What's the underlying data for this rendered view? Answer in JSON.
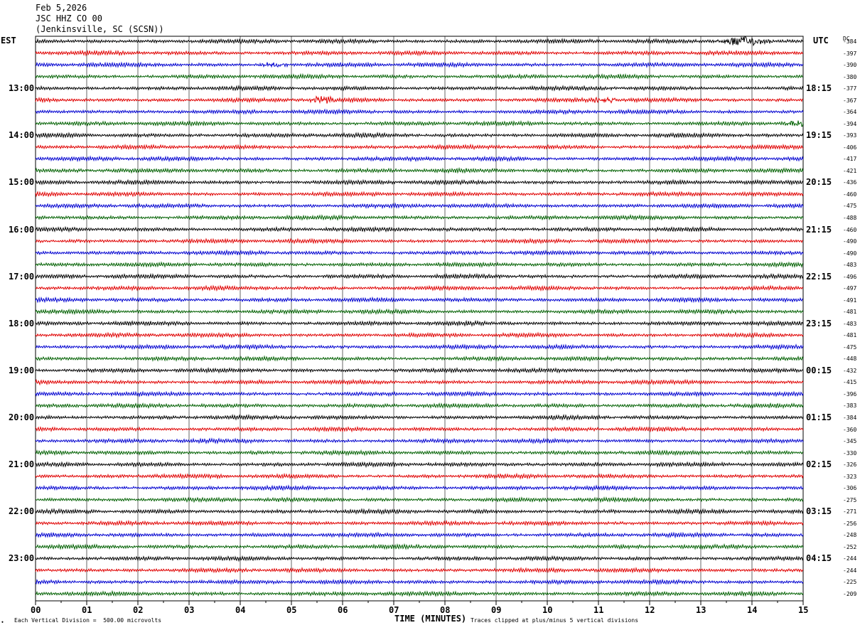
{
  "header": {
    "date": "Feb 5,2026",
    "station": "JSC HHZ CO 00",
    "location": "(Jenkinsville, SC (SCSN))"
  },
  "left_tz": "EST",
  "right_tz": "UTC",
  "dc_header": "DC",
  "footer": {
    "scale": "Each Vertical Division =  500.00 microvolts",
    "clip_note": "Traces clipped at plus/minus 5 vertical divisions",
    "xlabel": "TIME (MINUTES)"
  },
  "chart_data": {
    "type": "line",
    "title": "",
    "xlabel": "TIME (MINUTES)",
    "xlim": [
      0,
      15
    ],
    "x_ticks": [
      "00",
      "01",
      "02",
      "03",
      "04",
      "05",
      "06",
      "07",
      "08",
      "09",
      "10",
      "11",
      "12",
      "13",
      "14",
      "15"
    ],
    "trace_interval_minutes": 15,
    "trace_colors": [
      "#000000",
      "#e00000",
      "#0000d0",
      "#006000"
    ],
    "hour_labels_local": [
      "13:00",
      "14:00",
      "15:00",
      "16:00",
      "17:00",
      "18:00",
      "19:00",
      "20:00",
      "21:00",
      "22:00",
      "23:00"
    ],
    "hour_labels_utc": [
      "18:15",
      "19:15",
      "20:15",
      "21:15",
      "22:15",
      "23:15",
      "00:15",
      "01:15",
      "02:15",
      "03:15",
      "04:15"
    ],
    "dc_offsets": [
      "-384",
      "-397",
      "-390",
      "-380",
      "-377",
      "-367",
      "-364",
      "-394",
      "-393",
      "-406",
      "-417",
      "-421",
      "-436",
      "-460",
      "-475",
      "-488",
      "-460",
      "-490",
      "-490",
      "-483",
      "-496",
      "-497",
      "-491",
      "-481",
      "-483",
      "-481",
      "-475",
      "-448",
      "-432",
      "-415",
      "-396",
      "-383",
      "-384",
      "-360",
      "-345",
      "-330",
      "-326",
      "-323",
      "-306",
      "-275",
      "-271",
      "-256",
      "-248",
      "-252",
      "-244",
      "-244",
      "-225",
      "-209"
    ],
    "events": [
      {
        "trace": 0,
        "minute": 13.8,
        "note": "large burst"
      },
      {
        "trace": 5,
        "minute": 5.6
      },
      {
        "trace": 5,
        "minute": 11.1
      },
      {
        "trace": 2,
        "minute": 4.7
      },
      {
        "trace": 7,
        "minute": 14.9
      }
    ]
  }
}
